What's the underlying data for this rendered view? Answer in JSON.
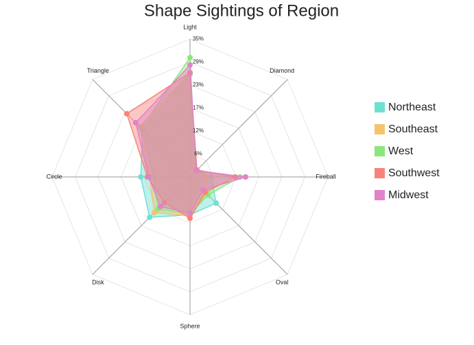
{
  "chart_data": {
    "type": "radar",
    "title": "Shape Sightings of Region",
    "categories": [
      "Light",
      "Diamond",
      "Fireball",
      "Oval",
      "Sphere",
      "Disk",
      "Circle",
      "Triangle"
    ],
    "rlim": [
      0,
      35
    ],
    "rticks": [
      {
        "value": 5.83,
        "label": "6%"
      },
      {
        "value": 11.67,
        "label": "12%"
      },
      {
        "value": 17.5,
        "label": "17%"
      },
      {
        "value": 23.33,
        "label": "23%"
      },
      {
        "value": 29.17,
        "label": "29%"
      },
      {
        "value": 35,
        "label": "35%"
      }
    ],
    "grid": true,
    "legend": "right",
    "series": [
      {
        "name": "Northeast",
        "color": "#6ee0d2",
        "values": [
          26,
          2.2,
          5.4,
          9.4,
          9.6,
          14.5,
          12.5,
          17
        ]
      },
      {
        "name": "Southeast",
        "color": "#f6c36c",
        "values": [
          26.5,
          2.3,
          4,
          6,
          9.8,
          12.8,
          10.3,
          18
        ]
      },
      {
        "name": "West",
        "color": "#8ae87a",
        "values": [
          30.3,
          2,
          12.7,
          6.5,
          9.4,
          11.5,
          9.2,
          17.5
        ]
      },
      {
        "name": "Southwest",
        "color": "#f9837b",
        "values": [
          26.5,
          2.5,
          11.5,
          5.5,
          10.5,
          9.2,
          10.8,
          22.7
        ]
      },
      {
        "name": "Midwest",
        "color": "#e083c9",
        "values": [
          28.4,
          2.3,
          14.1,
          4.7,
          9.2,
          10.6,
          10.5,
          19.5
        ]
      }
    ]
  }
}
